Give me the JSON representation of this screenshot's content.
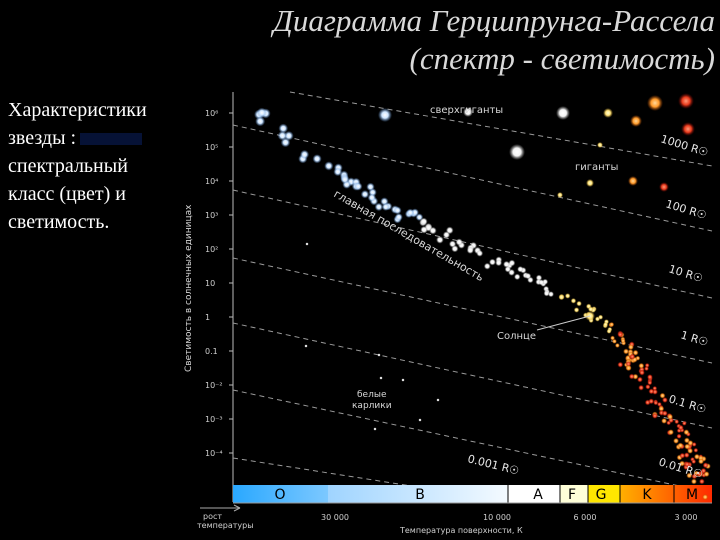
{
  "slide": {
    "title_line1": "Диаграмма Герцшпрунга-Рассела",
    "title_line2": "(спектр - светимость)",
    "desc_line1": "Характеристики",
    "desc_line2": "звезды :",
    "desc_line3": "спектральный",
    "desc_line4": "класс (цвет) и",
    "desc_line5": "светимость."
  },
  "diagram": {
    "y_axis_label": "Светимость в солнечных единицах",
    "x_axis_label": "Температура поверхности, К",
    "x_axis_left_label_1": "рост",
    "x_axis_left_label_2": "температуры",
    "y_ticks": [
      "10⁶",
      "10⁵",
      "10⁴",
      "10³",
      "10²",
      "10",
      "1",
      "0.1",
      "10⁻²",
      "10⁻³",
      "10⁻⁴"
    ],
    "x_ticks": [
      "30 000",
      "10 000",
      "6 000",
      "3 000"
    ],
    "spectral_classes": [
      "O",
      "B",
      "A",
      "F",
      "G",
      "K",
      "M"
    ],
    "radius_labels": [
      "1000 R☉",
      "100 R☉",
      "10 R☉",
      "1 R☉",
      "0.1 R☉",
      "0.01 R☉",
      "0.001 R☉"
    ],
    "region_labels": {
      "supergiants": "сверхгиганты",
      "giants": "гиганты",
      "main_sequence": "главная последовательность",
      "sun": "Солнце",
      "white_dwarfs_1": "белые",
      "white_dwarfs_2": "карлики"
    },
    "colors": {
      "hot": "#9fd0ff",
      "white": "#ffffff",
      "yellow": "#ffe27a",
      "orange": "#ff9a2a",
      "red": "#e83a1c",
      "bar_o": "#2aa8ff",
      "bar_b": "#d9ecff",
      "bar_k": "#ff8a00",
      "bar_m": "#ff3a10"
    }
  }
}
